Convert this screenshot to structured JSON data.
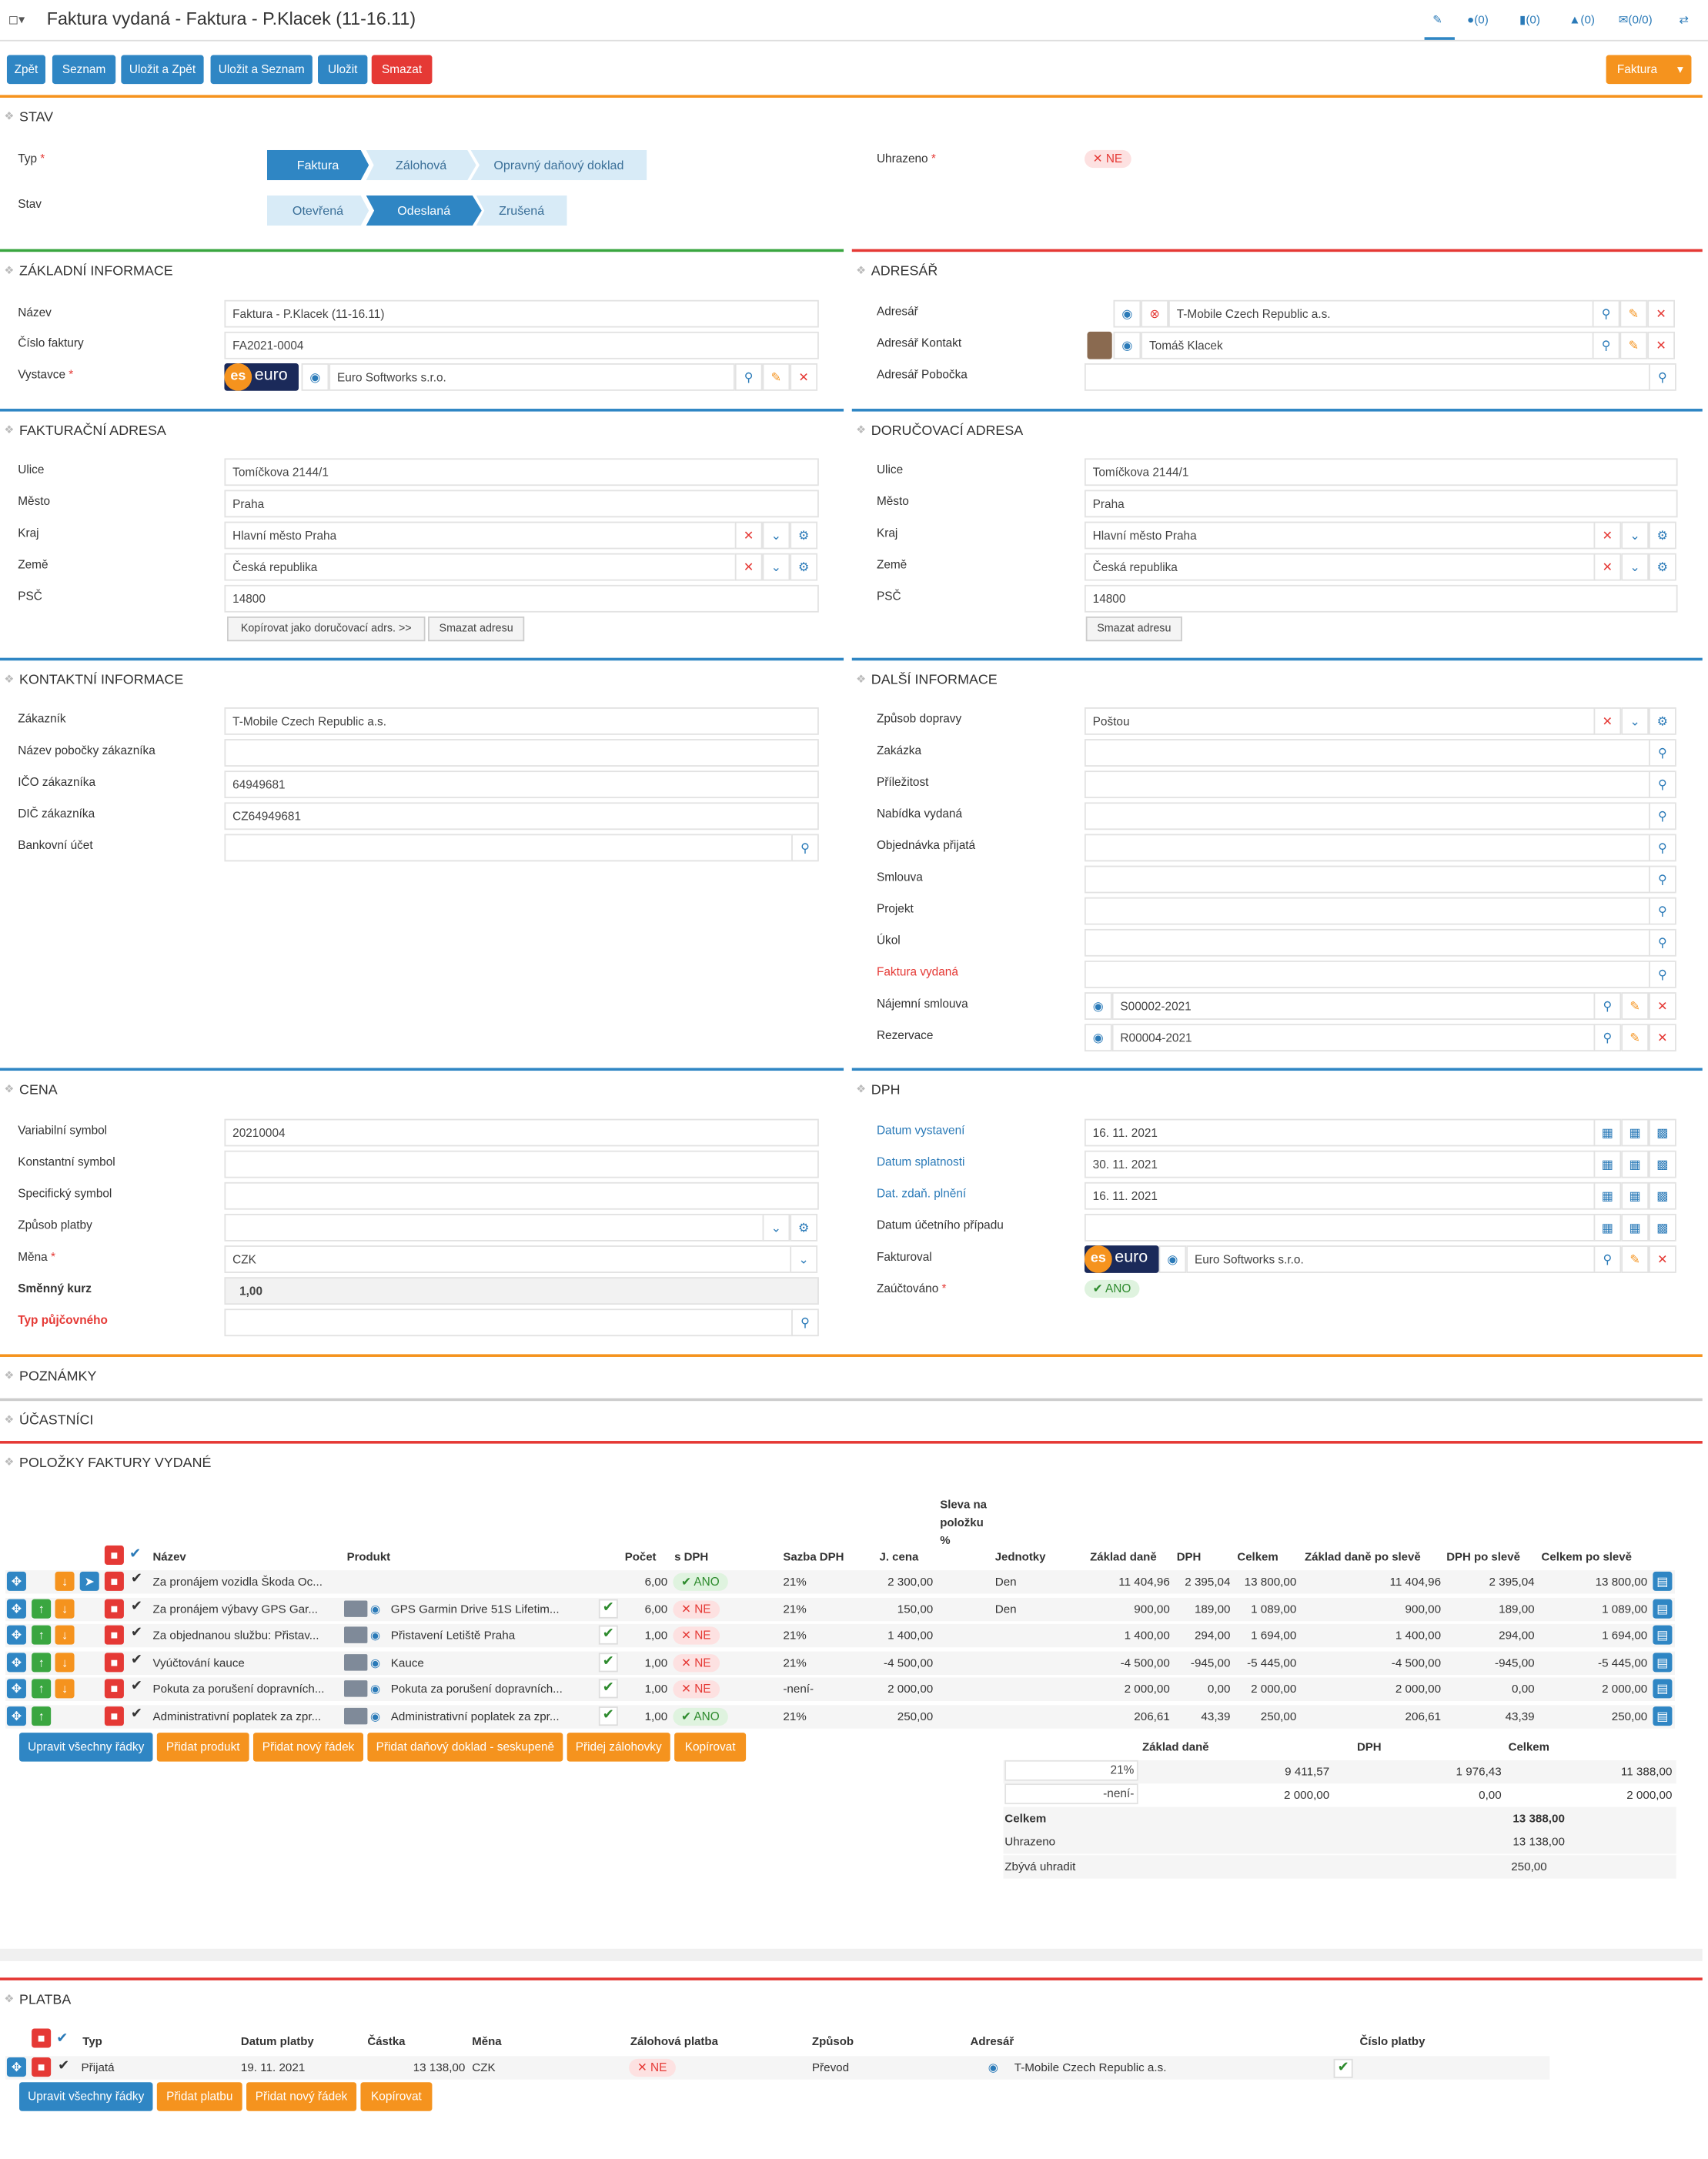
{
  "header": {
    "title": "Faktura vydaná - Faktura - P.Klacek (11-16.11)",
    "icons": [
      {
        "name": "pencil-icon",
        "label": ""
      },
      {
        "name": "comments-icon",
        "label": "(0)"
      },
      {
        "name": "file-icon",
        "label": "(0)"
      },
      {
        "name": "bell-icon",
        "label": "(0)"
      },
      {
        "name": "mail-icon",
        "label": "(0/0)"
      },
      {
        "name": "swap-icon",
        "label": ""
      }
    ]
  },
  "toolbar": {
    "back": "Zpět",
    "list": "Seznam",
    "save_back": "Uložit a Zpět",
    "save_list": "Uložit a Seznam",
    "save": "Uložit",
    "delete": "Smazat",
    "faktura": "Faktura"
  },
  "stav": {
    "title": "Stav",
    "typ_label": "Typ",
    "typ_steps": [
      "Faktura",
      "Zálohová",
      "Opravný daňový doklad"
    ],
    "stav_label": "Stav",
    "stav_steps": [
      "Otevřená",
      "Odeslaná",
      "Zrušená"
    ],
    "uhrazeno_label": "Uhrazeno",
    "uhrazeno_value": "NE"
  },
  "zakladni": {
    "title": "Základní informace",
    "nazev_label": "Název",
    "nazev": "Faktura - P.Klacek (11-16.11)",
    "cislo_label": "Číslo faktury",
    "cislo": "FA2021-0004",
    "vystavce_label": "Vystavce",
    "vystavce": "Euro Softworks s.r.o."
  },
  "adresar": {
    "title": "Adresář",
    "adresar_label": "Adresář",
    "adresar": "T-Mobile Czech Republic a.s.",
    "kontakt_label": "Adresář Kontakt",
    "kontakt": "Tomáš Klacek",
    "pobocka_label": "Adresář Pobočka",
    "pobocka": ""
  },
  "fakturacni": {
    "title": "Fakturační adresa",
    "ulice_label": "Ulice",
    "ulice": "Tomíčkova 2144/1",
    "mesto_label": "Město",
    "mesto": "Praha",
    "kraj_label": "Kraj",
    "kraj": "Hlavní město Praha",
    "zeme_label": "Země",
    "zeme": "Česká republika",
    "psc_label": "PSČ",
    "psc": "14800",
    "copy_btn": "Kopírovat jako doručovací adrs. >>",
    "del_btn": "Smazat adresu"
  },
  "dorucovaci": {
    "title": "Doručovací adresa",
    "ulice_label": "Ulice",
    "ulice": "Tomíčkova 2144/1",
    "mesto_label": "Město",
    "mesto": "Praha",
    "kraj_label": "Kraj",
    "kraj": "Hlavní město Praha",
    "zeme_label": "Země",
    "zeme": "Česká republika",
    "psc_label": "PSČ",
    "psc": "14800",
    "del_btn": "Smazat adresu"
  },
  "kontaktni": {
    "title": "Kontaktní informace",
    "zakaznik_label": "Zákazník",
    "zakaznik": "T-Mobile Czech Republic a.s.",
    "pobocka_label": "Název pobočky zákazníka",
    "pobocka": "",
    "ico_label": "IČO zákazníka",
    "ico": "64949681",
    "dic_label": "DIČ zákazníka",
    "dic": "CZ64949681",
    "ucet_label": "Bankovní účet",
    "ucet": ""
  },
  "dalsi": {
    "title": "Další informace",
    "doprava_label": "Způsob dopravy",
    "doprava": "Poštou",
    "zakazka_label": "Zakázka",
    "prilezitost_label": "Příležitost",
    "nabidka_label": "Nabídka vydaná",
    "objednavka_label": "Objednávka přijatá",
    "smlouva_label": "Smlouva",
    "projekt_label": "Projekt",
    "ukol_label": "Úkol",
    "faktura_label": "Faktura vydaná",
    "najemni_label": "Nájemní smlouva",
    "najemni": "S00002-2021",
    "rezervace_label": "Rezervace",
    "rezervace": "R00004-2021"
  },
  "cena": {
    "title": "Cena",
    "vs_label": "Variabilní symbol",
    "vs": "20210004",
    "ks_label": "Konstantní symbol",
    "ss_label": "Specifický symbol",
    "platba_label": "Způsob platby",
    "mena_label": "Měna",
    "mena": "CZK",
    "kurz_label": "Směnný kurz",
    "kurz": "1,00",
    "typ_label": "Typ půjčovného"
  },
  "dph": {
    "title": "DPH",
    "vystaveni_label": "Datum vystavení",
    "vystaveni": "16. 11. 2021",
    "splatnosti_label": "Datum splatnosti",
    "splatnosti": "30. 11. 2021",
    "zdan_label": "Dat. zdaň. plnění",
    "zdan": "16. 11. 2021",
    "ucetni_label": "Datum účetního případu",
    "fakturoval_label": "Fakturoval",
    "fakturoval": "Euro Softworks s.r.o.",
    "zauctovano_label": "Zaúčtováno",
    "zauctovano": "ANO"
  },
  "poznamky": {
    "title": "Poznámky"
  },
  "ucastnici": {
    "title": "Účastníci"
  },
  "polozky": {
    "title": "Položky faktury vydané",
    "headers": {
      "nazev": "Název",
      "produkt": "Produkt",
      "pocet": "Počet",
      "sdph": "s DPH",
      "sazba": "Sazba DPH",
      "jcena": "J. cena",
      "sleva": "Sleva na položku %",
      "jednotky": "Jednotky",
      "zaklad": "Základ daně",
      "dph": "DPH",
      "celkem": "Celkem",
      "zaklad_po": "Základ daně po slevě",
      "dph_po": "DPH po slevě",
      "celkem_po": "Celkem po slevě"
    },
    "rows": [
      {
        "nazev": "Za pronájem vozidla Škoda Oc...",
        "produkt": "",
        "pocet": "6,00",
        "sdph": "ANO",
        "sazba": "21%",
        "jcena": "2 300,00",
        "jednotky": "Den",
        "zaklad": "11 404,96",
        "dph": "2 395,04",
        "celkem": "13 800,00",
        "zaklad_po": "11 404,96",
        "dph_po": "2 395,04",
        "celkem_po": "13 800,00"
      },
      {
        "nazev": "Za pronájem výbavy GPS Gar...",
        "produkt": "GPS Garmin Drive 51S Lifetim...",
        "pocet": "6,00",
        "sdph": "NE",
        "sazba": "21%",
        "jcena": "150,00",
        "jednotky": "Den",
        "zaklad": "900,00",
        "dph": "189,00",
        "celkem": "1 089,00",
        "zaklad_po": "900,00",
        "dph_po": "189,00",
        "celkem_po": "1 089,00"
      },
      {
        "nazev": "Za objednanou službu: Přistav...",
        "produkt": "Přistavení Letiště Praha",
        "pocet": "1,00",
        "sdph": "NE",
        "sazba": "21%",
        "jcena": "1 400,00",
        "jednotky": "",
        "zaklad": "1 400,00",
        "dph": "294,00",
        "celkem": "1 694,00",
        "zaklad_po": "1 400,00",
        "dph_po": "294,00",
        "celkem_po": "1 694,00"
      },
      {
        "nazev": "Vyúčtování kauce",
        "produkt": "Kauce",
        "pocet": "1,00",
        "sdph": "NE",
        "sazba": "21%",
        "jcena": "-4 500,00",
        "jednotky": "",
        "zaklad": "-4 500,00",
        "dph": "-945,00",
        "celkem": "-5 445,00",
        "zaklad_po": "-4 500,00",
        "dph_po": "-945,00",
        "celkem_po": "-5 445,00"
      },
      {
        "nazev": "Pokuta za porušení dopravních...",
        "produkt": "Pokuta za porušení dopravních...",
        "pocet": "1,00",
        "sdph": "NE",
        "sazba": "-není-",
        "jcena": "2 000,00",
        "jednotky": "",
        "zaklad": "2 000,00",
        "dph": "0,00",
        "celkem": "2 000,00",
        "zaklad_po": "2 000,00",
        "dph_po": "0,00",
        "celkem_po": "2 000,00"
      },
      {
        "nazev": "Administrativní poplatek za zpr...",
        "produkt": "Administrativní poplatek za zpr...",
        "pocet": "1,00",
        "sdph": "ANO",
        "sazba": "21%",
        "jcena": "250,00",
        "jednotky": "",
        "zaklad": "206,61",
        "dph": "43,39",
        "celkem": "250,00",
        "zaklad_po": "206,61",
        "dph_po": "43,39",
        "celkem_po": "250,00"
      }
    ],
    "buttons": [
      "Upravit všechny řádky",
      "Přidat produkt",
      "Přidat nový řádek",
      "Přidat daňový doklad - seskupeně",
      "Přidej zálohovky",
      "Kopírovat"
    ],
    "summary": {
      "h_zaklad": "Základ daně",
      "h_dph": "DPH",
      "h_celkem": "Celkem",
      "rows": [
        {
          "sazba": "21%",
          "zaklad": "9 411,57",
          "dph": "1 976,43",
          "celkem": "11 388,00"
        },
        {
          "sazba": "-není-",
          "zaklad": "2 000,00",
          "dph": "0,00",
          "celkem": "2 000,00"
        }
      ],
      "celkem_label": "Celkem",
      "celkem": "13 388,00",
      "uhrazeno_label": "Uhrazeno",
      "uhrazeno": "13 138,00",
      "zbyva_label": "Zbývá uhradit",
      "zbyva": "250,00"
    }
  },
  "platba": {
    "title": "Platba",
    "headers": {
      "typ": "Typ",
      "datum": "Datum platby",
      "castka": "Částka",
      "mena": "Měna",
      "zalohova": "Zálohová platba",
      "zpusob": "Způsob",
      "adresar": "Adresář",
      "cislo": "Číslo platby"
    },
    "row": {
      "typ": "Přijatá",
      "datum": "19. 11. 2021",
      "castka": "13 138,00",
      "mena": "CZK",
      "zalohova": "NE",
      "zpusob": "Převod",
      "adresar": "T-Mobile Czech Republic a.s."
    },
    "buttons": [
      "Upravit všechny řádky",
      "Přidat platbu",
      "Přidat nový řádek",
      "Kopírovat"
    ]
  },
  "colors": {
    "accent": "#2f86c4",
    "danger": "#e53935",
    "warning": "#f5931e",
    "success": "#3aa640"
  }
}
